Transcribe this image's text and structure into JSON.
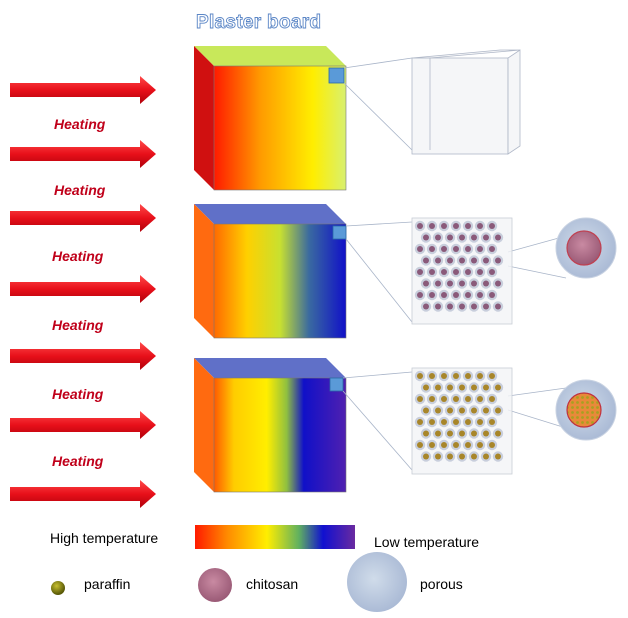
{
  "title": "Plaster board",
  "heating_labels": [
    "Heating",
    "Heating",
    "Heating",
    "Heating",
    "Heating",
    "Heating"
  ],
  "gradient_legend": {
    "high_label": "High temperature",
    "low_label": "Low temperature"
  },
  "legend_items": [
    {
      "label": "paraffin",
      "icon": "paraffin-dot-icon"
    },
    {
      "label": "chitosan",
      "icon": "chitosan-sphere-icon"
    },
    {
      "label": "porous",
      "icon": "porous-sphere-icon"
    }
  ],
  "colors": {
    "arrow": "#e8101a",
    "heating_text": "#c0001a",
    "title_outline": "#5b86c6",
    "hot": "#ff1a00",
    "warm": "#ffe600",
    "cool": "#1010c8",
    "cold": "#6a2aa0",
    "paraffin": "#7a7a10",
    "chitosan": "#a0607a",
    "porous": "#b8c6de"
  }
}
